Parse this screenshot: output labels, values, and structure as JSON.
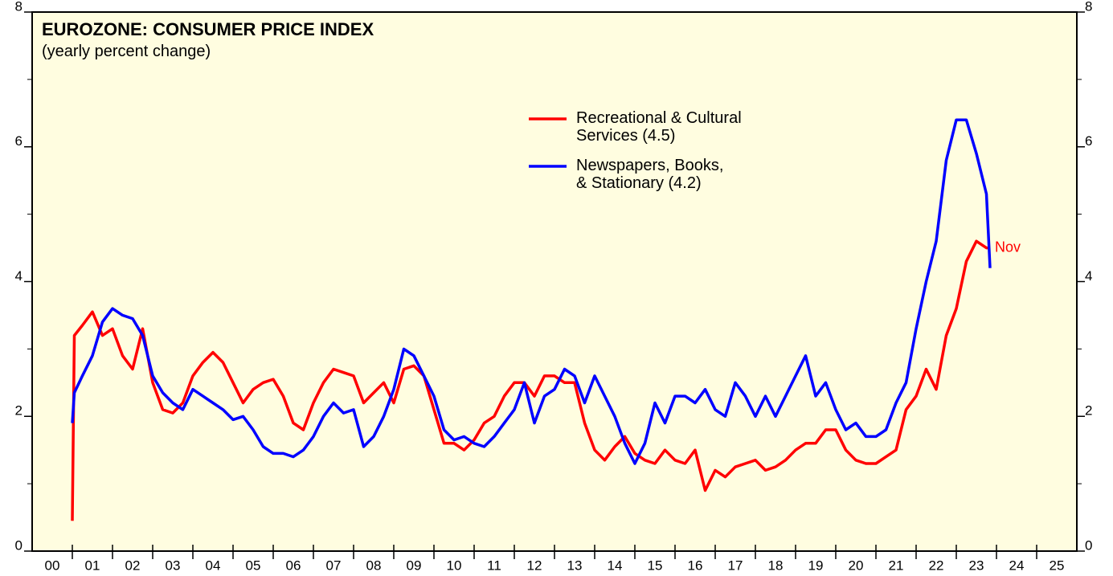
{
  "chart_data": {
    "type": "line",
    "title": "EUROZONE: CONSUMER PRICE INDEX",
    "subtitle": "(yearly percent change)",
    "annotation": {
      "text": "Nov",
      "color": "#ff0000"
    },
    "x": [
      2001.0,
      2001.05,
      2001.25,
      2001.5,
      2001.75,
      2002.0,
      2002.25,
      2002.5,
      2002.75,
      2003.0,
      2003.25,
      2003.5,
      2003.75,
      2004.0,
      2004.25,
      2004.5,
      2004.75,
      2005.0,
      2005.25,
      2005.5,
      2005.75,
      2006.0,
      2006.25,
      2006.5,
      2006.75,
      2007.0,
      2007.25,
      2007.5,
      2007.75,
      2008.0,
      2008.25,
      2008.5,
      2008.75,
      2009.0,
      2009.25,
      2009.5,
      2009.75,
      2010.0,
      2010.25,
      2010.5,
      2010.75,
      2011.0,
      2011.25,
      2011.5,
      2011.75,
      2012.0,
      2012.25,
      2012.5,
      2012.75,
      2013.0,
      2013.25,
      2013.5,
      2013.75,
      2014.0,
      2014.25,
      2014.5,
      2014.75,
      2015.0,
      2015.25,
      2015.5,
      2015.75,
      2016.0,
      2016.25,
      2016.5,
      2016.75,
      2017.0,
      2017.25,
      2017.5,
      2017.75,
      2018.0,
      2018.25,
      2018.5,
      2018.75,
      2019.0,
      2019.25,
      2019.5,
      2019.75,
      2020.0,
      2020.25,
      2020.5,
      2020.75,
      2021.0,
      2021.25,
      2021.5,
      2021.75,
      2022.0,
      2022.25,
      2022.5,
      2022.75,
      2023.0,
      2023.25,
      2023.5,
      2023.75,
      2023.84
    ],
    "series": [
      {
        "name": "Recreational & Cultural\nServices (4.5)",
        "color": "#ff0000",
        "values": [
          0.45,
          3.2,
          3.35,
          3.55,
          3.2,
          3.3,
          2.9,
          2.7,
          3.3,
          2.5,
          2.1,
          2.05,
          2.2,
          2.6,
          2.8,
          2.95,
          2.8,
          2.5,
          2.2,
          2.4,
          2.5,
          2.55,
          2.3,
          1.9,
          1.8,
          2.2,
          2.5,
          2.7,
          2.65,
          2.6,
          2.2,
          2.35,
          2.5,
          2.2,
          2.7,
          2.75,
          2.6,
          2.1,
          1.6,
          1.6,
          1.5,
          1.65,
          1.9,
          2.0,
          2.3,
          2.5,
          2.5,
          2.3,
          2.6,
          2.6,
          2.5,
          2.5,
          1.9,
          1.5,
          1.35,
          1.55,
          1.7,
          1.45,
          1.35,
          1.3,
          1.5,
          1.35,
          1.3,
          1.5,
          0.9,
          1.2,
          1.1,
          1.25,
          1.3,
          1.35,
          1.2,
          1.25,
          1.35,
          1.5,
          1.6,
          1.6,
          1.8,
          1.8,
          1.5,
          1.35,
          1.3,
          1.3,
          1.4,
          1.5,
          2.1,
          2.3,
          2.7,
          2.4,
          3.2,
          3.6,
          4.3,
          4.6,
          4.5,
          4.5
        ]
      },
      {
        "name": "Newspapers, Books,\n& Stationary (4.2)",
        "color": "#0000ff",
        "values": [
          1.9,
          2.35,
          2.6,
          2.9,
          3.4,
          3.6,
          3.5,
          3.45,
          3.2,
          2.6,
          2.35,
          2.2,
          2.1,
          2.4,
          2.3,
          2.2,
          2.1,
          1.95,
          2.0,
          1.8,
          1.55,
          1.45,
          1.45,
          1.4,
          1.5,
          1.7,
          2.0,
          2.2,
          2.05,
          2.1,
          1.55,
          1.7,
          2.0,
          2.4,
          3.0,
          2.9,
          2.6,
          2.3,
          1.8,
          1.65,
          1.7,
          1.6,
          1.55,
          1.7,
          1.9,
          2.1,
          2.5,
          1.9,
          2.3,
          2.4,
          2.7,
          2.6,
          2.2,
          2.6,
          2.3,
          2.0,
          1.6,
          1.3,
          1.6,
          2.2,
          1.9,
          2.3,
          2.3,
          2.2,
          2.4,
          2.1,
          2.0,
          2.5,
          2.3,
          2.0,
          2.3,
          2.0,
          2.3,
          2.6,
          2.9,
          2.3,
          2.5,
          2.1,
          1.8,
          1.9,
          1.7,
          1.7,
          1.8,
          2.2,
          2.5,
          3.3,
          4.0,
          4.6,
          5.8,
          6.4,
          6.4,
          5.9,
          5.3,
          4.2
        ]
      }
    ],
    "xlim": [
      2000,
      2026
    ],
    "xticks": [
      {
        "value": 2000.5,
        "label": "00"
      },
      {
        "value": 2001.5,
        "label": "01"
      },
      {
        "value": 2002.5,
        "label": "02"
      },
      {
        "value": 2003.5,
        "label": "03"
      },
      {
        "value": 2004.5,
        "label": "04"
      },
      {
        "value": 2005.5,
        "label": "05"
      },
      {
        "value": 2006.5,
        "label": "06"
      },
      {
        "value": 2007.5,
        "label": "07"
      },
      {
        "value": 2008.5,
        "label": "08"
      },
      {
        "value": 2009.5,
        "label": "09"
      },
      {
        "value": 2010.5,
        "label": "10"
      },
      {
        "value": 2011.5,
        "label": "11"
      },
      {
        "value": 2012.5,
        "label": "12"
      },
      {
        "value": 2013.5,
        "label": "13"
      },
      {
        "value": 2014.5,
        "label": "14"
      },
      {
        "value": 2015.5,
        "label": "15"
      },
      {
        "value": 2016.5,
        "label": "16"
      },
      {
        "value": 2017.5,
        "label": "17"
      },
      {
        "value": 2018.5,
        "label": "18"
      },
      {
        "value": 2019.5,
        "label": "19"
      },
      {
        "value": 2020.5,
        "label": "20"
      },
      {
        "value": 2021.5,
        "label": "21"
      },
      {
        "value": 2022.5,
        "label": "22"
      },
      {
        "value": 2023.5,
        "label": "23"
      },
      {
        "value": 2024.5,
        "label": "24"
      },
      {
        "value": 2025.5,
        "label": "25"
      }
    ],
    "xminorticks": [
      2001,
      2002,
      2003,
      2004,
      2005,
      2006,
      2007,
      2008,
      2009,
      2010,
      2011,
      2012,
      2013,
      2014,
      2015,
      2016,
      2017,
      2018,
      2019,
      2020,
      2021,
      2022,
      2023,
      2024,
      2025
    ],
    "ylim": [
      0,
      8
    ],
    "yticks": [
      0,
      2,
      4,
      6,
      8
    ],
    "yminorticks": [
      1,
      3,
      5,
      7
    ],
    "background": "#fffde0"
  }
}
